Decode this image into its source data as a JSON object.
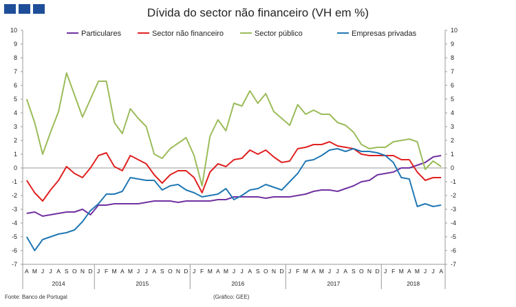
{
  "title": "Dívida do sector não financeiro (VH em %)",
  "footer": {
    "source": "Fonte: Banco de Portugal",
    "credit": "(Gráfico: GEE)"
  },
  "colors": {
    "Particulares": "#7030a0",
    "Sector não financeiro": "#e02020",
    "Sector público": "#9bbb59",
    "Empresas privadas": "#1f77b4",
    "brand": "#1f4e99"
  },
  "chart_data": {
    "type": "line",
    "title": "Dívida do sector não financeiro (VH em %)",
    "ylim": [
      -7,
      10
    ],
    "yticks": [
      -7,
      -6,
      -5,
      -4,
      -3,
      -2,
      -1,
      0,
      1,
      2,
      3,
      4,
      5,
      6,
      7,
      8,
      9,
      10
    ],
    "legend_position": "top",
    "months": [
      "A",
      "M",
      "J",
      "J",
      "A",
      "S",
      "O",
      "N",
      "D",
      "J",
      "F",
      "M",
      "A",
      "M",
      "J",
      "J",
      "A",
      "S",
      "O",
      "N",
      "D",
      "J",
      "F",
      "M",
      "A",
      "M",
      "J",
      "J",
      "A",
      "S",
      "O",
      "N",
      "D",
      "J",
      "F",
      "M",
      "A",
      "M",
      "J",
      "J",
      "A",
      "S",
      "O",
      "N",
      "D",
      "J",
      "F",
      "M",
      "A",
      "M",
      "J",
      "J",
      "A"
    ],
    "years": [
      {
        "label": "2014",
        "start": 0,
        "end": 8
      },
      {
        "label": "2015",
        "start": 9,
        "end": 20
      },
      {
        "label": "2016",
        "start": 21,
        "end": 32
      },
      {
        "label": "2017",
        "start": 33,
        "end": 44
      },
      {
        "label": "2018",
        "start": 45,
        "end": 52
      }
    ],
    "series": [
      {
        "name": "Particulares",
        "values": [
          -3.3,
          -3.2,
          -3.5,
          -3.4,
          -3.3,
          -3.2,
          -3.2,
          -3.0,
          -3.4,
          -2.7,
          -2.7,
          -2.6,
          -2.6,
          -2.6,
          -2.6,
          -2.5,
          -2.4,
          -2.4,
          -2.4,
          -2.5,
          -2.4,
          -2.4,
          -2.4,
          -2.4,
          -2.3,
          -2.3,
          -2.1,
          -2.1,
          -2.1,
          -2.1,
          -2.2,
          -2.1,
          -2.1,
          -2.1,
          -2.0,
          -1.9,
          -1.7,
          -1.6,
          -1.6,
          -1.7,
          -1.5,
          -1.3,
          -1.0,
          -0.9,
          -0.5,
          -0.4,
          -0.3,
          0.0,
          0.0,
          0.2,
          0.4,
          0.8,
          0.9
        ]
      },
      {
        "name": "Sector não financeiro",
        "values": [
          -0.9,
          -1.8,
          -2.4,
          -1.6,
          -0.9,
          0.1,
          -0.4,
          -0.7,
          0.0,
          0.9,
          1.1,
          0.1,
          -0.2,
          0.9,
          0.6,
          0.3,
          -0.5,
          -1.1,
          -0.5,
          -0.2,
          -0.2,
          -0.7,
          -1.8,
          -0.3,
          0.3,
          0.1,
          0.6,
          0.7,
          1.3,
          1.0,
          1.3,
          0.8,
          0.4,
          0.5,
          1.4,
          1.5,
          1.7,
          1.7,
          1.9,
          1.6,
          1.5,
          1.4,
          1.0,
          0.9,
          0.9,
          0.9,
          0.9,
          0.6,
          0.6,
          -0.3,
          -0.9,
          -0.7,
          -0.7
        ]
      },
      {
        "name": "Sector público",
        "values": [
          5.0,
          3.3,
          1.0,
          2.6,
          4.1,
          6.9,
          5.3,
          3.7,
          5.0,
          6.3,
          6.3,
          3.3,
          2.5,
          4.3,
          3.6,
          3.0,
          1.0,
          0.7,
          1.4,
          1.8,
          2.2,
          0.9,
          -1.3,
          2.3,
          3.5,
          2.7,
          4.7,
          4.5,
          5.6,
          4.7,
          5.4,
          4.1,
          3.6,
          3.1,
          4.6,
          3.9,
          4.2,
          3.9,
          3.9,
          3.3,
          3.1,
          2.6,
          1.7,
          1.4,
          1.5,
          1.5,
          1.9,
          2.0,
          2.1,
          1.9,
          -0.1,
          0.5,
          0.1
        ]
      },
      {
        "name": "Empresas privadas",
        "values": [
          -5.0,
          -6.0,
          -5.2,
          -5.0,
          -4.8,
          -4.7,
          -4.5,
          -3.9,
          -3.1,
          -2.6,
          -1.9,
          -1.9,
          -1.7,
          -0.7,
          -0.8,
          -0.9,
          -0.9,
          -1.6,
          -1.3,
          -1.2,
          -1.6,
          -1.8,
          -2.1,
          -2.0,
          -1.9,
          -1.5,
          -2.3,
          -2.0,
          -1.6,
          -1.5,
          -1.2,
          -1.4,
          -1.6,
          -1.0,
          -0.4,
          0.5,
          0.6,
          0.9,
          1.3,
          1.4,
          1.2,
          1.4,
          1.2,
          1.2,
          1.1,
          0.9,
          0.4,
          -0.7,
          -0.8,
          -2.8,
          -2.6,
          -2.8,
          -2.7
        ]
      }
    ]
  }
}
